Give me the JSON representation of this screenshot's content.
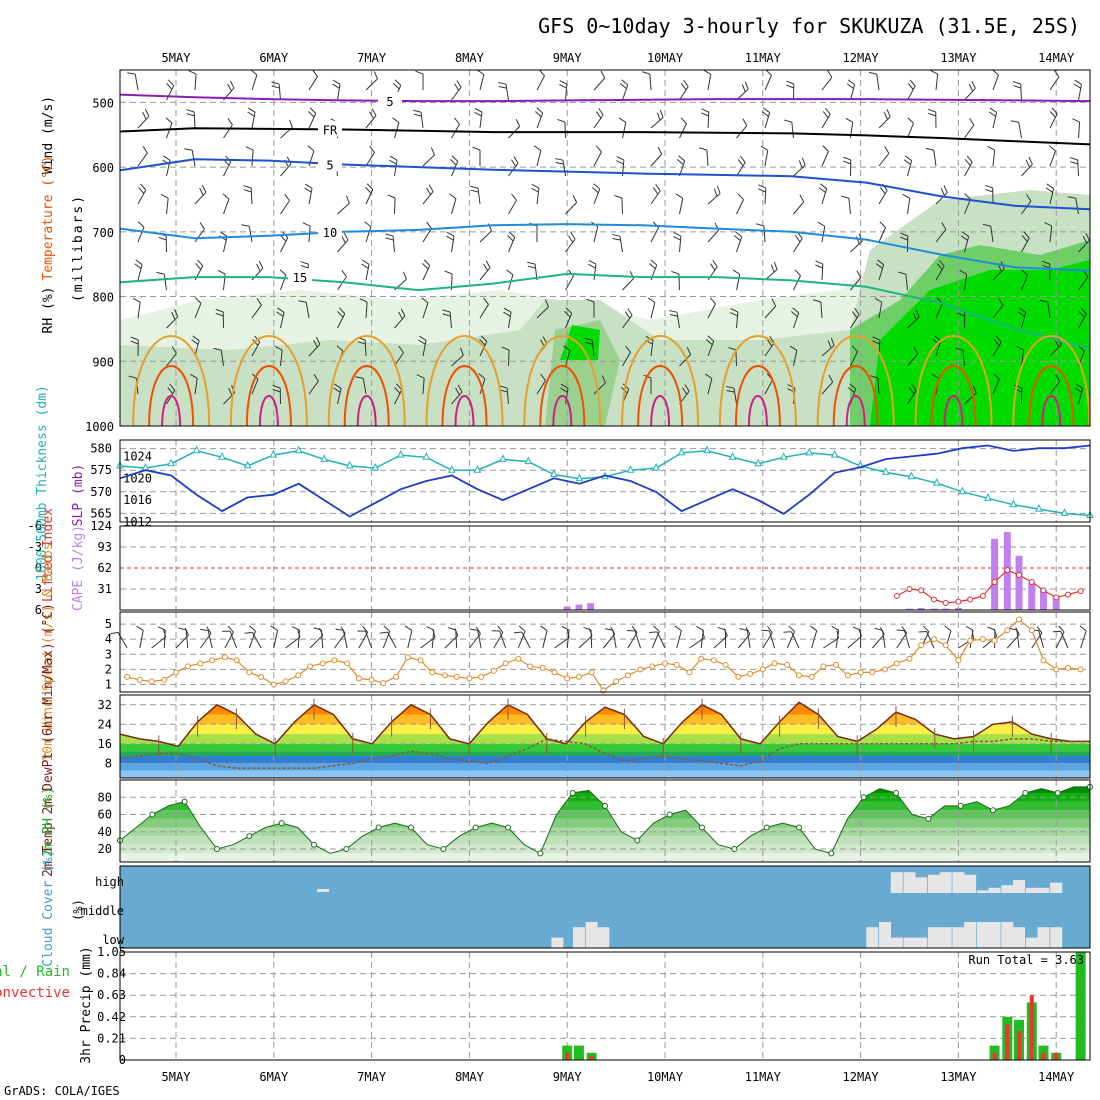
{
  "title": "GFS 0~10day 3-hourly for SKUKUZA (31.5E, 25S)",
  "credit": "GrADS: COLA/IGES",
  "colors": {
    "temp_violet": "#8a1eb4",
    "temp_black": "#000000",
    "temp_blue": "#1e50d2",
    "temp_lightblue": "#1e8cdc",
    "temp_teal": "#1eb482",
    "temp_orange": "#e6a028",
    "temp_red": "#f05000",
    "temp_magenta": "#d21e82",
    "rh_green": "#00dc00",
    "thickness": "#20b2b8",
    "slp": "#1e3cc8",
    "cape": "#c080f0",
    "lifted_index": "#e03030",
    "wind10m": "#e08c28",
    "cloud_bg": "#69aad2",
    "cloud_fill": "#e6e6e6",
    "precip_total": "#22bb22",
    "precip_conv": "#ee3333"
  },
  "chart_data": [
    {
      "panel": "upper_air",
      "type": "heatmap",
      "xlabels": [
        "5MAY",
        "6MAY",
        "7MAY",
        "8MAY",
        "9MAY",
        "10MAY",
        "11MAY",
        "12MAY",
        "13MAY",
        "14MAY"
      ],
      "ylabel_parts": [
        "RH (%)",
        "Temperature (°C)",
        "Wind (m/s)"
      ],
      "ylabel_unit": "(millibars)",
      "yticks": [
        500,
        600,
        700,
        800,
        900,
        1000
      ],
      "ylim": [
        1000,
        450
      ],
      "temperature_contours": [
        {
          "label": "5",
          "pressure_mb": [
            488,
            492,
            495,
            497,
            498,
            498,
            497,
            496,
            495,
            495,
            495,
            496,
            497,
            498
          ]
        },
        {
          "label": "FR",
          "pressure_mb": [
            545,
            540,
            541,
            542,
            544,
            546,
            546,
            546,
            547,
            548,
            551,
            555,
            560,
            565
          ]
        },
        {
          "label": "5",
          "pressure_mb": [
            605,
            588,
            590,
            596,
            600,
            604,
            607,
            610,
            612,
            614,
            624,
            645,
            660,
            665
          ]
        },
        {
          "label": "10",
          "pressure_mb": [
            695,
            710,
            706,
            700,
            697,
            690,
            688,
            690,
            695,
            700,
            712,
            735,
            755,
            760
          ]
        },
        {
          "label": "15",
          "pressure_mb": [
            778,
            770,
            770,
            778,
            790,
            780,
            765,
            770,
            770,
            775,
            785,
            810,
            850,
            880
          ]
        }
      ],
      "rh_moist_layer": {
        "days": [
          "9MAY",
          "13MAY",
          "14MAY"
        ],
        "levels": [
          ">70",
          ">80",
          ">90"
        ]
      }
    },
    {
      "panel": "thickness_slp",
      "type": "line",
      "ylabel_left": "1000-500mb Thickness (dm)",
      "ylabel_right": "SLP (mb)",
      "yticks_left": [
        565,
        570,
        575,
        580
      ],
      "yticks_right": [
        1016,
        1020,
        1024
      ],
      "yticks_right_bottom": "1012",
      "series": [
        {
          "label": "1000-500mb Thickness (dm)",
          "values": [
            576.0,
            575.5,
            576.5,
            579.5,
            578.0,
            576.0,
            578.5,
            579.5,
            577.5,
            576.0,
            575.5,
            578.5,
            578.0,
            575.0,
            575.0,
            577.5,
            577.0,
            574.0,
            573.0,
            573.5,
            575.0,
            575.5,
            579.0,
            579.5,
            578.0,
            576.5,
            578.0,
            579.0,
            578.5,
            576.0,
            574.5,
            573.5,
            572.0,
            570.0,
            568.5,
            567.0,
            566.0,
            565.0,
            564.5
          ]
        },
        {
          "label": "SLP (mb)",
          "values": [
            1020.0,
            1021.5,
            1020.5,
            1017.0,
            1014.0,
            1016.5,
            1017.0,
            1019.0,
            1016.0,
            1013.0,
            1015.5,
            1018.0,
            1019.5,
            1020.5,
            1018.0,
            1016.0,
            1018.0,
            1020.0,
            1019.0,
            1020.5,
            1019.5,
            1017.5,
            1014.0,
            1016.0,
            1018.0,
            1016.0,
            1013.5,
            1017.0,
            1021.0,
            1022.0,
            1023.5,
            1024.0,
            1024.5,
            1025.5,
            1026.0,
            1025.0,
            1025.5,
            1025.5,
            1026.0
          ]
        }
      ]
    },
    {
      "panel": "instability",
      "type": "bar",
      "ylabel_left": "Lifted Index",
      "ylabel_right": "CAPE (J/kg)",
      "yticks_left": [
        "-6",
        "-3",
        "0",
        "3",
        "6"
      ],
      "yticks_right": [
        "124",
        "93",
        "62",
        "31"
      ],
      "series": [
        {
          "label": "CAPE (J/kg)",
          "type": "bar",
          "x_day": [
            4.0,
            4.12,
            4.24,
            7.5,
            7.62,
            7.75,
            7.87,
            8.0,
            8.37,
            8.5,
            8.62,
            8.75,
            8.87,
            9.0
          ],
          "values": [
            5,
            8,
            10,
            2,
            3,
            2,
            2,
            3,
            105,
            115,
            80,
            40,
            30,
            20
          ]
        },
        {
          "label": "Lifted Index",
          "type": "line",
          "x_day": [
            7.37,
            7.5,
            7.62,
            7.75,
            7.87,
            8.0,
            8.12,
            8.25,
            8.37,
            8.5,
            8.62,
            8.75,
            8.87,
            9.0,
            9.12,
            9.25
          ],
          "values": [
            4.0,
            3.0,
            3.2,
            4.5,
            5.0,
            4.8,
            4.5,
            4.0,
            2.0,
            0.3,
            1.0,
            2.0,
            3.2,
            4.2,
            3.8,
            3.3
          ]
        }
      ]
    },
    {
      "panel": "wind10m",
      "type": "line",
      "ylabel": "10m Wind Speed (m/s) & Barbs",
      "yticks": [
        1,
        2,
        3,
        4,
        5
      ],
      "x_day": [
        -0.5,
        -0.37,
        -0.25,
        -0.12,
        0.0,
        0.12,
        0.25,
        0.37,
        0.5,
        0.62,
        0.75,
        0.87,
        1.0,
        1.12,
        1.25,
        1.37,
        1.5,
        1.62,
        1.75,
        1.87,
        2.0,
        2.12,
        2.25,
        2.37,
        2.5,
        2.62,
        2.75,
        2.87,
        3.0,
        3.12,
        3.25,
        3.37,
        3.5,
        3.62,
        3.75,
        3.87,
        4.0,
        4.12,
        4.25,
        4.37,
        4.5,
        4.62,
        4.75,
        4.87,
        5.0,
        5.12,
        5.25,
        5.37,
        5.5,
        5.62,
        5.75,
        5.87,
        6.0,
        6.12,
        6.25,
        6.37,
        6.5,
        6.62,
        6.75,
        6.87,
        7.0,
        7.12,
        7.25,
        7.37,
        7.5,
        7.62,
        7.75,
        7.87,
        8.0,
        8.12,
        8.25,
        8.37,
        8.5,
        8.62,
        8.75,
        8.87,
        9.0,
        9.12,
        9.25
      ],
      "values": [
        1.5,
        1.3,
        1.2,
        1.3,
        1.8,
        2.2,
        2.4,
        2.6,
        2.8,
        2.6,
        1.8,
        1.5,
        1.0,
        1.2,
        1.6,
        2.2,
        2.4,
        2.6,
        2.4,
        1.4,
        1.3,
        1.1,
        1.5,
        2.8,
        2.6,
        1.8,
        1.6,
        1.5,
        1.4,
        1.5,
        1.9,
        2.4,
        2.7,
        2.2,
        2.1,
        1.8,
        1.4,
        1.5,
        1.8,
        0.6,
        1.2,
        1.6,
        2.0,
        2.2,
        2.4,
        2.3,
        1.8,
        2.7,
        2.6,
        2.3,
        1.5,
        1.7,
        2.0,
        2.4,
        2.3,
        1.6,
        1.5,
        2.2,
        2.3,
        1.6,
        1.8,
        1.8,
        2.0,
        2.4,
        2.7,
        3.6,
        4.0,
        3.6,
        2.6,
        3.9,
        4.0,
        3.9,
        4.6,
        5.3,
        4.6,
        2.6,
        2.0,
        2.1,
        2.0
      ]
    },
    {
      "panel": "temperature_2m",
      "type": "area",
      "ylabel": "2m Temp 2m DewPt (6hr Min/Max) (°C)",
      "yticks": [
        8,
        16,
        24,
        32
      ],
      "series": [
        {
          "label": "2m Temp",
          "values": [
            20,
            18,
            17,
            15,
            25,
            32,
            28,
            20,
            16,
            25,
            32,
            28,
            18,
            16,
            25,
            32,
            28,
            18,
            16,
            25,
            32,
            28,
            18,
            16,
            25,
            31,
            28,
            19,
            16,
            25,
            32,
            28,
            18,
            16,
            25,
            33,
            28,
            19,
            17,
            22,
            29,
            26,
            20,
            18,
            19,
            24,
            25,
            20,
            18,
            17,
            17
          ]
        },
        {
          "label": "2m DewPt",
          "values": [
            10,
            11,
            12,
            12,
            10,
            7,
            6,
            6,
            6,
            6,
            6,
            7,
            8,
            10,
            11,
            13,
            12,
            10,
            9,
            8,
            11,
            14,
            18,
            17,
            16,
            12,
            9,
            10,
            11,
            10,
            9,
            8,
            7,
            9,
            14,
            16,
            16,
            16,
            16,
            16,
            16,
            16,
            16,
            16,
            17,
            17,
            18,
            18,
            17,
            17,
            17
          ]
        }
      ]
    },
    {
      "panel": "rh_2m",
      "type": "area",
      "ylabel": "2m RH (%)",
      "yticks": [
        20,
        40,
        60,
        80
      ],
      "values": [
        30,
        45,
        60,
        70,
        75,
        45,
        20,
        25,
        35,
        45,
        50,
        45,
        25,
        15,
        20,
        35,
        45,
        50,
        45,
        25,
        20,
        35,
        45,
        50,
        45,
        25,
        15,
        60,
        85,
        88,
        70,
        40,
        30,
        50,
        60,
        65,
        45,
        25,
        20,
        35,
        45,
        50,
        45,
        20,
        15,
        55,
        80,
        90,
        85,
        60,
        55,
        70,
        70,
        75,
        65,
        70,
        85,
        90,
        85,
        92,
        92
      ]
    },
    {
      "panel": "cloud_cover",
      "type": "bar",
      "ylabel": "Cloud Cover (%)",
      "levels": [
        "high",
        "middle",
        "low"
      ],
      "high_cover": {
        "x_day": [
          7.37,
          7.5,
          7.62,
          7.75,
          7.87,
          8.0,
          8.12,
          8.25,
          8.37,
          8.5,
          8.62,
          8.75,
          8.87,
          9.0
        ],
        "values": [
          80,
          80,
          60,
          70,
          80,
          80,
          70,
          10,
          20,
          30,
          50,
          20,
          20,
          40
        ]
      },
      "low_cover": {
        "x_day": [
          3.9,
          4.12,
          4.25,
          4.37,
          7.12,
          7.25,
          7.37,
          7.5,
          7.62,
          7.75,
          7.87,
          8.0,
          8.12,
          8.25,
          8.37,
          8.5,
          8.62,
          8.75,
          8.87,
          9.0
        ],
        "values": [
          10,
          20,
          25,
          20,
          20,
          25,
          10,
          10,
          10,
          20,
          20,
          20,
          30,
          30,
          25,
          30,
          20,
          10,
          20,
          20
        ]
      }
    },
    {
      "panel": "precip_3hr",
      "type": "bar",
      "ylabel": "3hr Precip (mm)",
      "legend_left": [
        "Total / Rain",
        "Convective"
      ],
      "annotation": "Run Total = 3.63",
      "yticks": [
        "0",
        "0.21",
        "0.42",
        "0.63",
        "0.84",
        "1.05"
      ],
      "ylim": [
        0,
        1.05
      ],
      "series": [
        {
          "label": "Total / Rain",
          "x_day": [
            4.0,
            4.12,
            4.25,
            8.37,
            8.5,
            8.62,
            8.75,
            8.87,
            9.0,
            9.25
          ],
          "values": [
            0.14,
            0.14,
            0.07,
            0.14,
            0.42,
            0.39,
            0.56,
            0.14,
            0.07,
            1.05
          ]
        },
        {
          "label": "Convective",
          "x_day": [
            4.0,
            4.12,
            4.25,
            8.37,
            8.5,
            8.62,
            8.75,
            8.87,
            9.0,
            9.25
          ],
          "values": [
            0.07,
            0.0,
            0.04,
            0.07,
            0.35,
            0.28,
            0.63,
            0.07,
            0.07,
            0.0
          ]
        }
      ]
    }
  ]
}
